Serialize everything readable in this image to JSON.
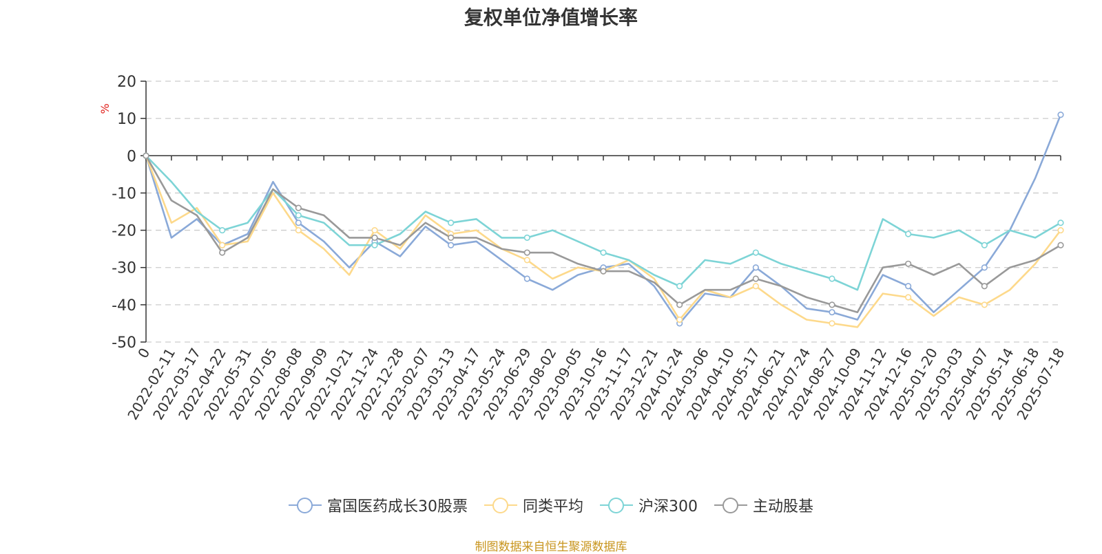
{
  "chart_data": {
    "type": "line",
    "title": "复权单位净值增长率",
    "ylabel": "%",
    "ylim": [
      -50,
      20
    ],
    "yticks": [
      20,
      10,
      0,
      -10,
      -20,
      -30,
      -40,
      -50
    ],
    "grid": true,
    "legend_position": "bottom",
    "x_tick_labels": [
      "0",
      "2022-02-11",
      "2022-03-17",
      "2022-04-22",
      "2022-05-31",
      "2022-07-05",
      "2022-08-08",
      "2022-09-09",
      "2022-10-21",
      "2022-11-24",
      "2022-12-28",
      "2023-02-07",
      "2023-03-13",
      "2023-04-17",
      "2023-05-24",
      "2023-06-29",
      "2023-08-02",
      "2023-09-05",
      "2023-10-16",
      "2023-11-17",
      "2023-12-21",
      "2024-01-24",
      "2024-03-06",
      "2024-04-10",
      "2024-05-17",
      "2024-06-21",
      "2024-07-24",
      "2024-08-27",
      "2024-10-09",
      "2024-11-12",
      "2024-12-16",
      "2025-01-20",
      "2025-03-03",
      "2025-04-07",
      "2025-05-14",
      "2025-06-18",
      "2025-07-18"
    ],
    "series": [
      {
        "name": "富国医药成长30股票",
        "color": "#8aa9d8",
        "values": [
          0,
          -22,
          -17,
          -24,
          -21,
          -7,
          -18,
          -23,
          -30,
          -23,
          -27,
          -19,
          -24,
          -23,
          -28,
          -33,
          -36,
          -32,
          -30,
          -29,
          -35,
          -45,
          -37,
          -38,
          -30,
          -35,
          -41,
          -42,
          -44,
          -32,
          -35,
          -42,
          -36,
          -30,
          -20,
          -6,
          11
        ]
      },
      {
        "name": "同类平均",
        "color": "#fdd98b",
        "values": [
          0,
          -18,
          -14,
          -24,
          -23,
          -10,
          -20,
          -25,
          -32,
          -20,
          -25,
          -16,
          -21,
          -20,
          -25,
          -28,
          -33,
          -30,
          -31,
          -28,
          -33,
          -44,
          -36,
          -38,
          -35,
          -40,
          -44,
          -45,
          -46,
          -37,
          -38,
          -43,
          -38,
          -40,
          -36,
          -29,
          -20
        ]
      },
      {
        "name": "沪深300",
        "color": "#7dd4d6",
        "values": [
          0,
          -7,
          -15,
          -20,
          -18,
          -9,
          -16,
          -18,
          -24,
          -24,
          -21,
          -15,
          -18,
          -17,
          -22,
          -22,
          -20,
          -23,
          -26,
          -28,
          -32,
          -35,
          -28,
          -29,
          -26,
          -29,
          -31,
          -33,
          -36,
          -17,
          -21,
          -22,
          -20,
          -24,
          -20,
          -22,
          -18
        ]
      },
      {
        "name": "主动股基",
        "color": "#999999",
        "values": [
          0,
          -12,
          -16,
          -26,
          -22,
          -9,
          -14,
          -16,
          -22,
          -22,
          -24,
          -18,
          -22,
          -22,
          -25,
          -26,
          -26,
          -29,
          -31,
          -31,
          -34,
          -40,
          -36,
          -36,
          -33,
          -35,
          -38,
          -40,
          -42,
          -30,
          -29,
          -32,
          -29,
          -35,
          -30,
          -28,
          -24
        ]
      }
    ]
  },
  "source_note": "制图数据来自恒生聚源数据库"
}
